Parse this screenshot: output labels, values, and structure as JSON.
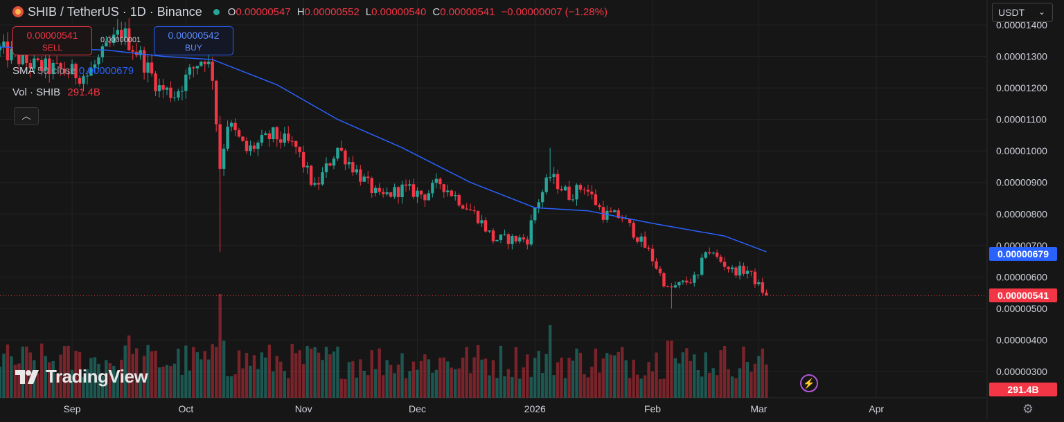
{
  "header": {
    "title": "SHIB / TetherUS · 1D · Binance",
    "ohlc": [
      {
        "key": "O",
        "value": "0.00000547"
      },
      {
        "key": "H",
        "value": "0.00000552"
      },
      {
        "key": "L",
        "value": "0.00000540"
      },
      {
        "key": "C",
        "value": "0.00000541"
      }
    ],
    "change": "−0.00000007 (−1.28%)"
  },
  "trade": {
    "sell_price": "0.00000541",
    "sell_label": "SELL",
    "buy_price": "0.00000542",
    "buy_label": "BUY",
    "spread": "0.00000001"
  },
  "indicators": {
    "sma_name": "SMA",
    "sma_params": "50 close",
    "sma_value": "0.00000679",
    "vol_name": "Vol · SHIB",
    "vol_value": "291.4B"
  },
  "currency": "USDT",
  "badges": {
    "sma": "0.00000679",
    "last": "0.00000541",
    "volume": "291.4B"
  },
  "watermark": "TradingView",
  "colors": {
    "up": "#26a69a",
    "down": "#f23645",
    "sma": "#2962ff",
    "background": "#161616",
    "grid": "#232323"
  },
  "chart_data": {
    "type": "candlestick",
    "symbol": "SHIB / TetherUS",
    "interval": "1D",
    "y_ticks": [
      "0.00000300",
      "0.00000400",
      "0.00000500",
      "0.00000600",
      "0.00000700",
      "0.00000800",
      "0.00000900",
      "0.00001000",
      "0.00001100",
      "0.00001200",
      "0.00001300",
      "0.00001400"
    ],
    "y_range": [
      2.5e-06,
      1.43e-05
    ],
    "x_labels": [
      "Sep",
      "Oct",
      "Nov",
      "Dec",
      "2026",
      "Feb",
      "Mar",
      "Apr"
    ],
    "x_label_dates": [
      "2025-09-01",
      "2025-10-01",
      "2025-11-01",
      "2025-12-01",
      "2026-01-01",
      "2026-02-01",
      "2026-03-01",
      "2026-04-01"
    ],
    "x_range": [
      "2025-08-13",
      "2026-04-30"
    ],
    "anchors": [
      {
        "date": "2025-08-13",
        "price": 1.32e-05
      },
      {
        "date": "2025-08-22",
        "price": 1.27e-05
      },
      {
        "date": "2025-09-05",
        "price": 1.24e-05
      },
      {
        "date": "2025-09-14",
        "price": 1.38e-05
      },
      {
        "date": "2025-09-19",
        "price": 1.3e-05
      },
      {
        "date": "2025-09-24",
        "price": 1.2e-05
      },
      {
        "date": "2025-09-28",
        "price": 1.18e-05
      },
      {
        "date": "2025-10-04",
        "price": 1.28e-05
      },
      {
        "date": "2025-10-06",
        "price": 1.3e-05
      },
      {
        "date": "2025-10-08",
        "price": 1.24e-05
      },
      {
        "date": "2025-10-10",
        "price": 9.5e-06
      },
      {
        "date": "2025-10-12",
        "price": 1.09e-05
      },
      {
        "date": "2025-10-17",
        "price": 1e-05
      },
      {
        "date": "2025-10-24",
        "price": 1.05e-05
      },
      {
        "date": "2025-10-30",
        "price": 1.01e-05
      },
      {
        "date": "2025-11-04",
        "price": 8.8e-06
      },
      {
        "date": "2025-11-10",
        "price": 1.01e-05
      },
      {
        "date": "2025-11-16",
        "price": 9.2e-06
      },
      {
        "date": "2025-11-21",
        "price": 8.5e-06
      },
      {
        "date": "2025-11-27",
        "price": 8.8e-06
      },
      {
        "date": "2025-12-03",
        "price": 8.6e-06
      },
      {
        "date": "2025-12-07",
        "price": 9e-06
      },
      {
        "date": "2025-12-17",
        "price": 7.9e-06
      },
      {
        "date": "2025-12-21",
        "price": 7.2e-06
      },
      {
        "date": "2025-12-30",
        "price": 7.2e-06
      },
      {
        "date": "2026-01-01",
        "price": 8.2e-06
      },
      {
        "date": "2026-01-05",
        "price": 9.2e-06
      },
      {
        "date": "2026-01-10",
        "price": 8.6e-06
      },
      {
        "date": "2026-01-14",
        "price": 8.9e-06
      },
      {
        "date": "2026-01-19",
        "price": 8e-06
      },
      {
        "date": "2026-01-24",
        "price": 7.9e-06
      },
      {
        "date": "2026-01-31",
        "price": 6.8e-06
      },
      {
        "date": "2026-02-05",
        "price": 5.6e-06
      },
      {
        "date": "2026-02-13",
        "price": 6e-06
      },
      {
        "date": "2026-02-15",
        "price": 6.9e-06
      },
      {
        "date": "2026-02-22",
        "price": 6.2e-06
      },
      {
        "date": "2026-02-26",
        "price": 6.2e-06
      },
      {
        "date": "2026-03-03",
        "price": 5.4e-06
      }
    ],
    "sma50": [
      {
        "date": "2025-08-13",
        "value": 1.33e-05
      },
      {
        "date": "2025-09-10",
        "value": 1.32e-05
      },
      {
        "date": "2025-09-25",
        "value": 1.3e-05
      },
      {
        "date": "2025-10-08",
        "value": 1.29e-05
      },
      {
        "date": "2025-10-25",
        "value": 1.21e-05
      },
      {
        "date": "2025-11-10",
        "value": 1.1e-05
      },
      {
        "date": "2025-11-27",
        "value": 1.01e-05
      },
      {
        "date": "2025-12-15",
        "value": 9e-06
      },
      {
        "date": "2026-01-01",
        "value": 8.2e-06
      },
      {
        "date": "2026-01-15",
        "value": 8.1e-06
      },
      {
        "date": "2026-02-01",
        "value": 7.7e-06
      },
      {
        "date": "2026-02-20",
        "value": 7.3e-06
      },
      {
        "date": "2026-03-03",
        "value": 6.8e-06
      }
    ],
    "last_price": 5.41e-06,
    "last_volume": "291.4B"
  }
}
